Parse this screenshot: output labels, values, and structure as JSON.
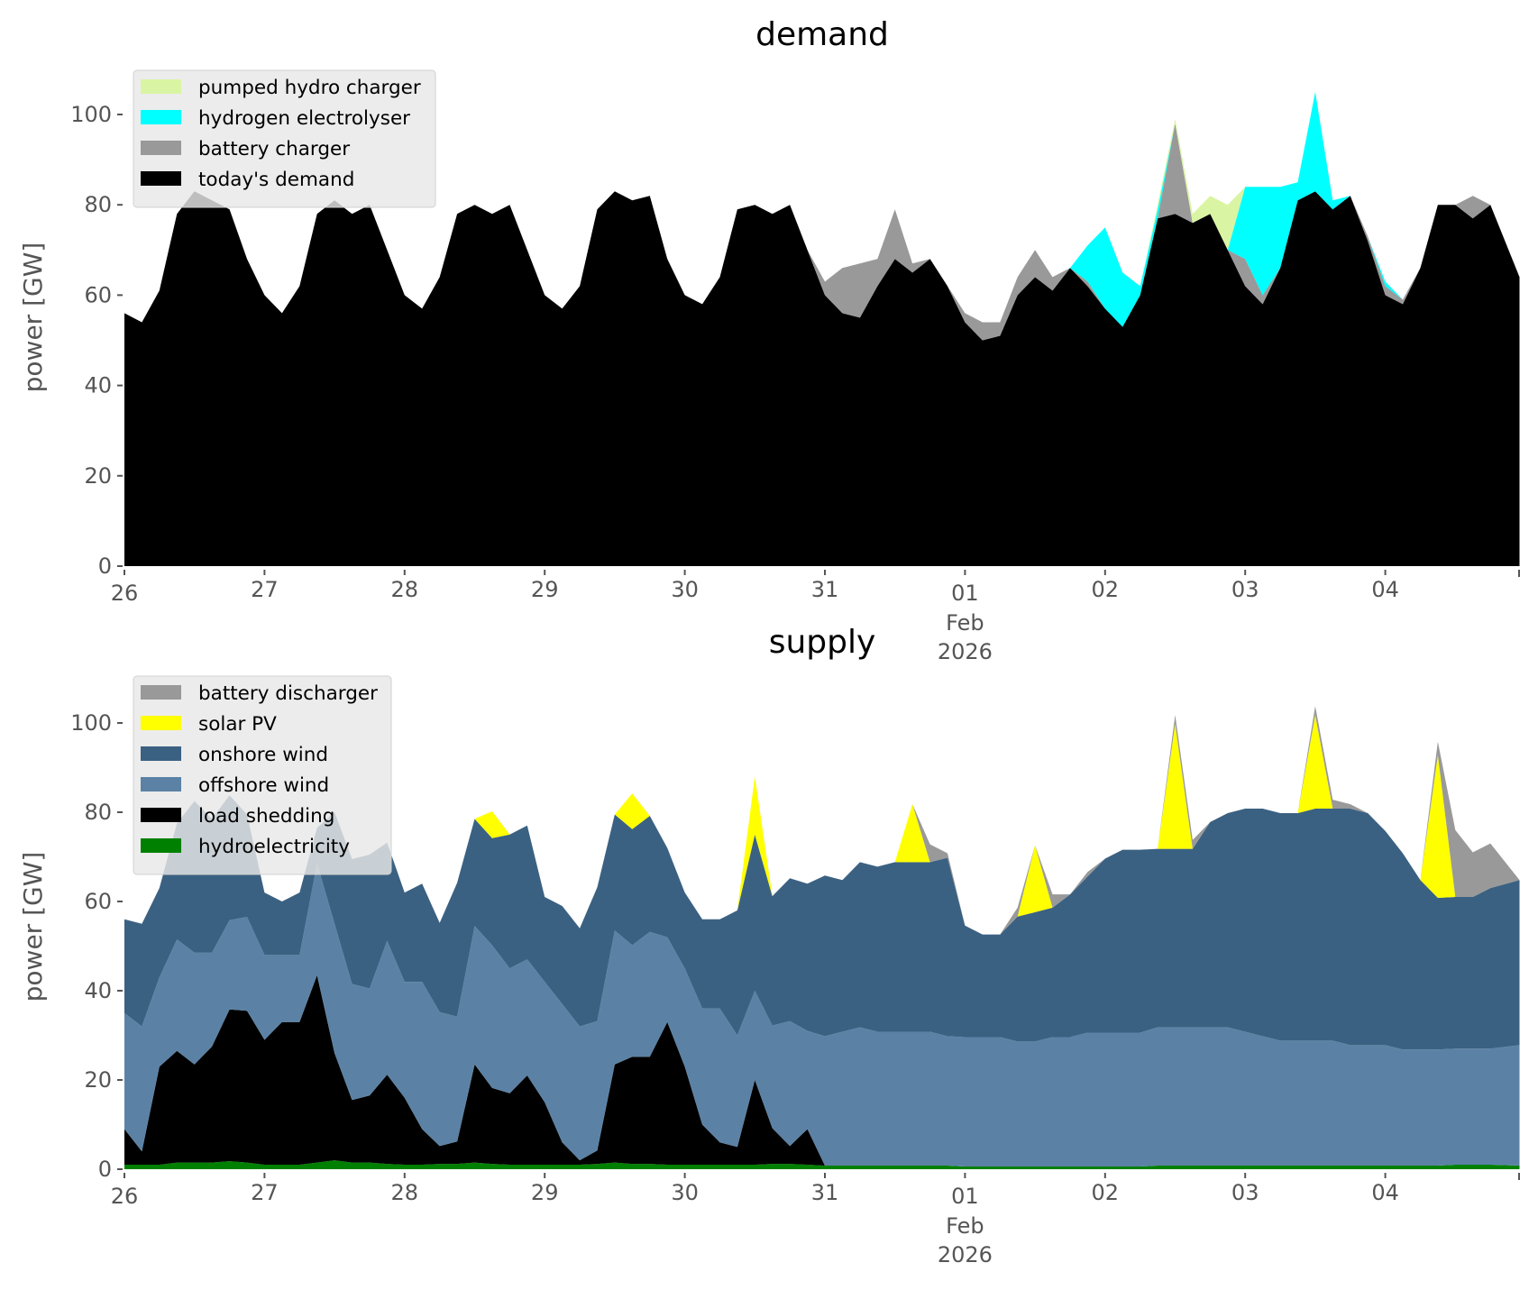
{
  "chart_data": [
    {
      "type": "area",
      "title": "demand",
      "ylabel": "power [GW]",
      "xlabel": "",
      "ylim": [
        0,
        110
      ],
      "yticks": [
        "0",
        "20",
        "40",
        "60",
        "80",
        "100"
      ],
      "ytick_values": [
        0,
        20,
        40,
        60,
        80,
        100
      ],
      "xticks": [
        "26",
        "27",
        "28",
        "29",
        "30",
        "31",
        "01",
        "02",
        "03",
        "04"
      ],
      "xtick_month": "Feb",
      "xtick_year": "2026",
      "x_unit": "hours since 26 Jan 2026 00:00",
      "x": [
        0,
        3,
        6,
        9,
        12,
        15,
        18,
        21,
        24,
        27,
        30,
        33,
        36,
        39,
        42,
        45,
        48,
        51,
        54,
        57,
        60,
        63,
        66,
        69,
        72,
        75,
        78,
        81,
        84,
        87,
        90,
        93,
        96,
        99,
        102,
        105,
        108,
        111,
        114,
        117,
        120,
        123,
        126,
        129,
        132,
        135,
        138,
        141,
        144,
        147,
        150,
        153,
        156,
        159,
        162,
        165,
        168,
        171,
        174,
        177,
        180,
        183,
        186,
        189,
        192,
        195,
        198,
        201,
        204,
        207,
        210,
        213,
        216,
        219,
        222,
        225,
        228,
        231,
        234,
        239
      ],
      "stacked": true,
      "legend_position": "top-left",
      "series": [
        {
          "name": "today's demand",
          "color": "#000000",
          "values": [
            56,
            54,
            61,
            78,
            83,
            81,
            79,
            68,
            60,
            56,
            62,
            78,
            81,
            78,
            80,
            70,
            60,
            57,
            64,
            78,
            80,
            78,
            80,
            70,
            60,
            57,
            62,
            79,
            83,
            81,
            82,
            68,
            60,
            58,
            64,
            79,
            80,
            78,
            80,
            70,
            60,
            56,
            55,
            62,
            68,
            65,
            68,
            62,
            54,
            50,
            51,
            60,
            64,
            61,
            66,
            62,
            57,
            53,
            60,
            77,
            78,
            76,
            78,
            70,
            62,
            58,
            66,
            81,
            83,
            79,
            82,
            72,
            60,
            58,
            66,
            80,
            80,
            77,
            80,
            64
          ]
        },
        {
          "name": "battery charger",
          "color": "#999999",
          "values": [
            0,
            0,
            0,
            0,
            0,
            0,
            0,
            0,
            0,
            0,
            0,
            0,
            0,
            0,
            0,
            0,
            0,
            0,
            0,
            0,
            0,
            0,
            0,
            0,
            0,
            0,
            0,
            0,
            0,
            0,
            0,
            0,
            0,
            0,
            0,
            0,
            0,
            0,
            0,
            0,
            3,
            10,
            12,
            6,
            11,
            2,
            0,
            0,
            2,
            4,
            3,
            4,
            6,
            3,
            0,
            1,
            0,
            0,
            0,
            0,
            20,
            0,
            0,
            0,
            6,
            2,
            0,
            0,
            0,
            0,
            0,
            1,
            2,
            1,
            0,
            0,
            0,
            5,
            0,
            0
          ]
        },
        {
          "name": "hydrogen electrolyser",
          "color": "#00ffff",
          "values": [
            0,
            0,
            0,
            0,
            0,
            0,
            0,
            0,
            0,
            0,
            0,
            0,
            0,
            0,
            0,
            0,
            0,
            0,
            0,
            0,
            0,
            0,
            0,
            0,
            0,
            0,
            0,
            0,
            0,
            0,
            0,
            0,
            0,
            0,
            0,
            0,
            0,
            0,
            0,
            0,
            0,
            0,
            0,
            0,
            0,
            0,
            0,
            0,
            0,
            0,
            0,
            0,
            0,
            0,
            0,
            8,
            18,
            12,
            2,
            2,
            0,
            0,
            0,
            0,
            16,
            24,
            18,
            4,
            22,
            2,
            0,
            0,
            1,
            0,
            0,
            0,
            0,
            0,
            0,
            0
          ]
        },
        {
          "name": "pumped hydro charger",
          "color": "#d9f5a3",
          "values": [
            0,
            0,
            0,
            0,
            0,
            0,
            0,
            0,
            0,
            0,
            0,
            0,
            0,
            0,
            0,
            0,
            0,
            0,
            0,
            0,
            0,
            0,
            0,
            0,
            0,
            0,
            0,
            0,
            0,
            0,
            0,
            0,
            0,
            0,
            0,
            0,
            0,
            0,
            0,
            0,
            0,
            0,
            0,
            0,
            0,
            0,
            0,
            0,
            0,
            0,
            0,
            0,
            0,
            0,
            0,
            0,
            0,
            0,
            0,
            1,
            1,
            2,
            4,
            10,
            0,
            0,
            0,
            0,
            0,
            0,
            0,
            0,
            0,
            0,
            0,
            0,
            0,
            0,
            0,
            0
          ]
        }
      ],
      "legend_order": [
        "pumped hydro charger",
        "hydrogen electrolyser",
        "battery charger",
        "today's demand"
      ]
    },
    {
      "type": "area",
      "title": "supply",
      "ylabel": "power [GW]",
      "xlabel": "",
      "ylim": [
        0,
        110
      ],
      "yticks": [
        "0",
        "20",
        "40",
        "60",
        "80",
        "100"
      ],
      "ytick_values": [
        0,
        20,
        40,
        60,
        80,
        100
      ],
      "xticks": [
        "26",
        "27",
        "28",
        "29",
        "30",
        "31",
        "01",
        "02",
        "03",
        "04"
      ],
      "xtick_month": "Feb",
      "xtick_year": "2026",
      "x_unit": "hours since 26 Jan 2026 00:00",
      "x": [
        0,
        3,
        6,
        9,
        12,
        15,
        18,
        21,
        24,
        27,
        30,
        33,
        36,
        39,
        42,
        45,
        48,
        51,
        54,
        57,
        60,
        63,
        66,
        69,
        72,
        75,
        78,
        81,
        84,
        87,
        90,
        93,
        96,
        99,
        102,
        105,
        108,
        111,
        114,
        117,
        120,
        123,
        126,
        129,
        132,
        135,
        138,
        141,
        144,
        147,
        150,
        153,
        156,
        159,
        162,
        165,
        168,
        171,
        174,
        177,
        180,
        183,
        186,
        189,
        192,
        195,
        198,
        201,
        204,
        207,
        210,
        213,
        216,
        219,
        222,
        225,
        228,
        231,
        234,
        239
      ],
      "stacked": true,
      "legend_position": "top-left",
      "series": [
        {
          "name": "hydroelectricity",
          "color": "#008000",
          "values": [
            1,
            1,
            1,
            1.5,
            1.5,
            1.5,
            1.8,
            1.5,
            1,
            1,
            1,
            1.5,
            2,
            1.5,
            1.5,
            1.2,
            1,
            1,
            1.2,
            1.2,
            1.5,
            1.2,
            1,
            1,
            1,
            1,
            1,
            1.2,
            1.5,
            1.2,
            1.2,
            1,
            1,
            1,
            1,
            1,
            1,
            1.2,
            1.2,
            1,
            0.8,
            0.8,
            0.8,
            0.8,
            0.8,
            0.8,
            0.8,
            0.8,
            0.6,
            0.6,
            0.6,
            0.6,
            0.6,
            0.6,
            0.6,
            0.6,
            0.6,
            0.6,
            0.6,
            0.8,
            0.8,
            0.8,
            0.8,
            0.8,
            0.8,
            0.8,
            0.8,
            0.8,
            0.8,
            0.8,
            0.8,
            0.8,
            0.8,
            0.8,
            0.8,
            0.8,
            1,
            1,
            1,
            0.8
          ]
        },
        {
          "name": "load shedding",
          "color": "#000000",
          "values": [
            8,
            3,
            22,
            25,
            22,
            26,
            34,
            34,
            28,
            32,
            32,
            42,
            24,
            14,
            15,
            20,
            15,
            8,
            4,
            5,
            22,
            17,
            16,
            20,
            14,
            5,
            1,
            3,
            22,
            24,
            24,
            32,
            22,
            9,
            5,
            4,
            19,
            8,
            4,
            8,
            0,
            0,
            0,
            0,
            0,
            0,
            0,
            0,
            0,
            0,
            0,
            0,
            0,
            0,
            0,
            0,
            0,
            0,
            0,
            0,
            0,
            0,
            0,
            0,
            0,
            0,
            0,
            0,
            0,
            0,
            0,
            0,
            0,
            0,
            0,
            0,
            0,
            0,
            0,
            0
          ]
        },
        {
          "name": "offshore wind",
          "color": "#5b82a5",
          "values": [
            26,
            28,
            20,
            25,
            25,
            21,
            20,
            21,
            19,
            15,
            15,
            25,
            29,
            26,
            24,
            30,
            26,
            33,
            30,
            28,
            31,
            32,
            28,
            26,
            27,
            31,
            30,
            29,
            30,
            25,
            28,
            19,
            22,
            26,
            30,
            25,
            20,
            23,
            28,
            22,
            29,
            30,
            31,
            30,
            30,
            30,
            30,
            29,
            29,
            29,
            29,
            28,
            28,
            29,
            29,
            30,
            30,
            30,
            30,
            31,
            31,
            31,
            31,
            31,
            30,
            29,
            28,
            28,
            28,
            28,
            27,
            27,
            27,
            26,
            26,
            26,
            26,
            26,
            26,
            27
          ]
        },
        {
          "name": "onshore wind",
          "color": "#3b6182",
          "values": [
            21,
            23,
            20,
            26,
            34,
            30,
            28,
            23,
            14,
            12,
            14,
            8,
            25,
            28,
            30,
            22,
            20,
            22,
            20,
            30,
            24,
            24,
            30,
            30,
            19,
            22,
            22,
            30,
            26,
            26,
            26,
            20,
            17,
            20,
            20,
            28,
            35,
            29,
            32,
            33,
            36,
            34,
            37,
            37,
            38,
            38,
            38,
            40,
            25,
            23,
            23,
            28,
            29,
            29,
            32,
            35,
            39,
            41,
            41,
            40,
            40,
            40,
            46,
            48,
            50,
            51,
            51,
            51,
            52,
            52,
            53,
            52,
            48,
            44,
            38,
            34,
            34,
            34,
            36,
            37
          ]
        },
        {
          "name": "solar PV",
          "color": "#ffff00",
          "values": [
            0,
            0,
            0,
            0,
            0,
            0,
            0,
            0,
            0,
            0,
            0,
            0,
            0,
            0,
            0,
            0,
            0,
            0,
            0,
            0,
            0,
            6,
            0,
            0,
            0,
            0,
            0,
            0,
            0,
            8,
            0,
            0,
            0,
            0,
            0,
            0,
            13,
            0,
            0,
            0,
            0,
            0,
            0,
            0,
            0,
            13,
            0,
            0,
            0,
            0,
            0,
            0,
            15,
            0,
            0,
            0,
            0,
            0,
            0,
            0,
            28,
            0,
            0,
            0,
            0,
            0,
            0,
            0,
            21,
            0,
            0,
            0,
            0,
            0,
            0,
            32,
            0,
            0,
            0,
            0
          ]
        },
        {
          "name": "battery discharger",
          "color": "#999999",
          "values": [
            0,
            0,
            0,
            0,
            0,
            0,
            0,
            0,
            0,
            0,
            0,
            0,
            0,
            0,
            0,
            0,
            0,
            0,
            0,
            0,
            0,
            0,
            0,
            0,
            0,
            0,
            0,
            0,
            0,
            0,
            0,
            0,
            0,
            0,
            0,
            0,
            0,
            0,
            0,
            0,
            0,
            0,
            0,
            0,
            0,
            0,
            4,
            1,
            0,
            0,
            0,
            2,
            0,
            3,
            0,
            1,
            0,
            0,
            0,
            0,
            2,
            2,
            0,
            0,
            0,
            0,
            0,
            0,
            2,
            2,
            1,
            0,
            0,
            0,
            0,
            3,
            15,
            10,
            10,
            0
          ]
        }
      ],
      "legend_order": [
        "battery discharger",
        "solar PV",
        "onshore wind",
        "offshore wind",
        "load shedding",
        "hydroelectricity"
      ]
    }
  ]
}
